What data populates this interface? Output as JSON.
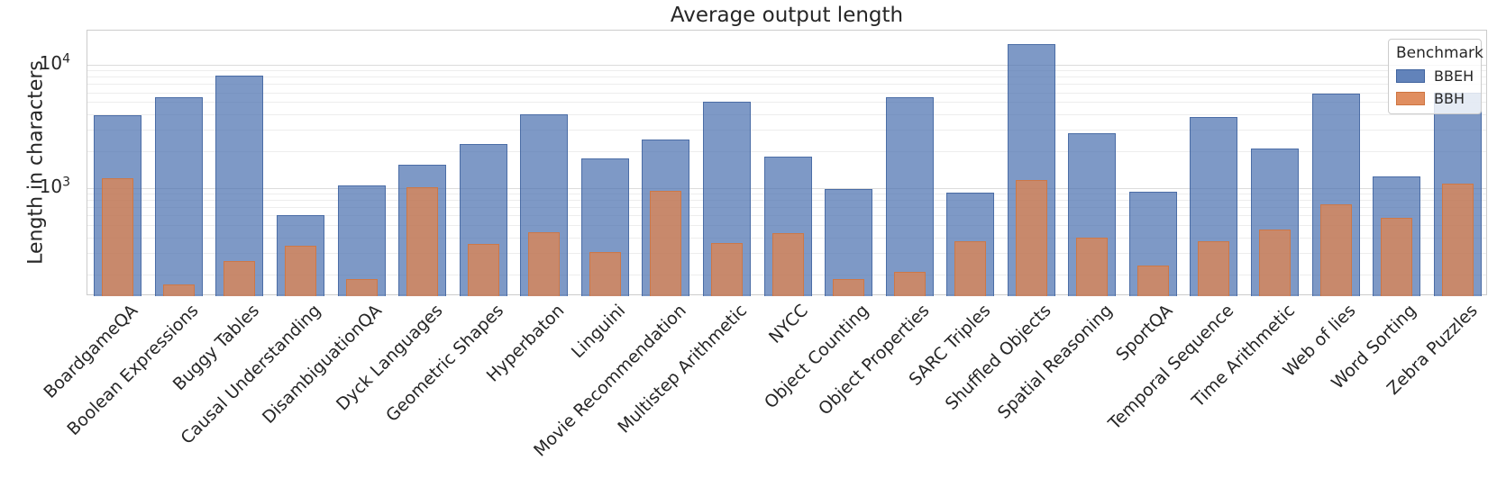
{
  "chart_data": {
    "type": "bar",
    "title": "Average output length",
    "xlabel": "",
    "ylabel": "Length in characters",
    "yscale": "log",
    "ylim": [
      133,
      19000
    ],
    "grid": true,
    "legend": {
      "title": "Benchmark",
      "position": "upper right",
      "entries": [
        {
          "name": "BBEH",
          "color": "#4C72B0"
        },
        {
          "name": "BBH",
          "color": "#DD8452"
        }
      ]
    },
    "yticks": [
      {
        "value": 1000,
        "base": "10",
        "exp": "3"
      },
      {
        "value": 10000,
        "base": "10",
        "exp": "4"
      }
    ],
    "categories": [
      "BoardgameQA",
      "Boolean Expressions",
      "Buggy Tables",
      "Causal Understanding",
      "DisambiguationQA",
      "Dyck Languages",
      "Geometric Shapes",
      "Hyperbaton",
      "Linguini",
      "Movie Recommendation",
      "Multistep Arithmetic",
      "NYCC",
      "Object Counting",
      "Object Properties",
      "SARC Triples",
      "Shuffled Objects",
      "Spatial Reasoning",
      "SportQA",
      "Temporal Sequence",
      "Time Arithmetic",
      "Web of lies",
      "Word Sorting",
      "Zebra Puzzles"
    ],
    "series": [
      {
        "name": "BBEH",
        "values": [
          3900,
          5470,
          8200,
          600,
          1060,
          1540,
          2280,
          3960,
          1740,
          2500,
          5000,
          1800,
          990,
          5460,
          920,
          14650,
          2780,
          935,
          3790,
          2100,
          5900,
          1250,
          5940
        ]
      },
      {
        "name": "BBH",
        "values": [
          1210,
          165,
          255,
          340,
          182,
          1020,
          350,
          440,
          305,
          950,
          360,
          435,
          183,
          210,
          370,
          1160,
          400,
          235,
          370,
          460,
          740,
          575,
          1080
        ]
      }
    ]
  }
}
